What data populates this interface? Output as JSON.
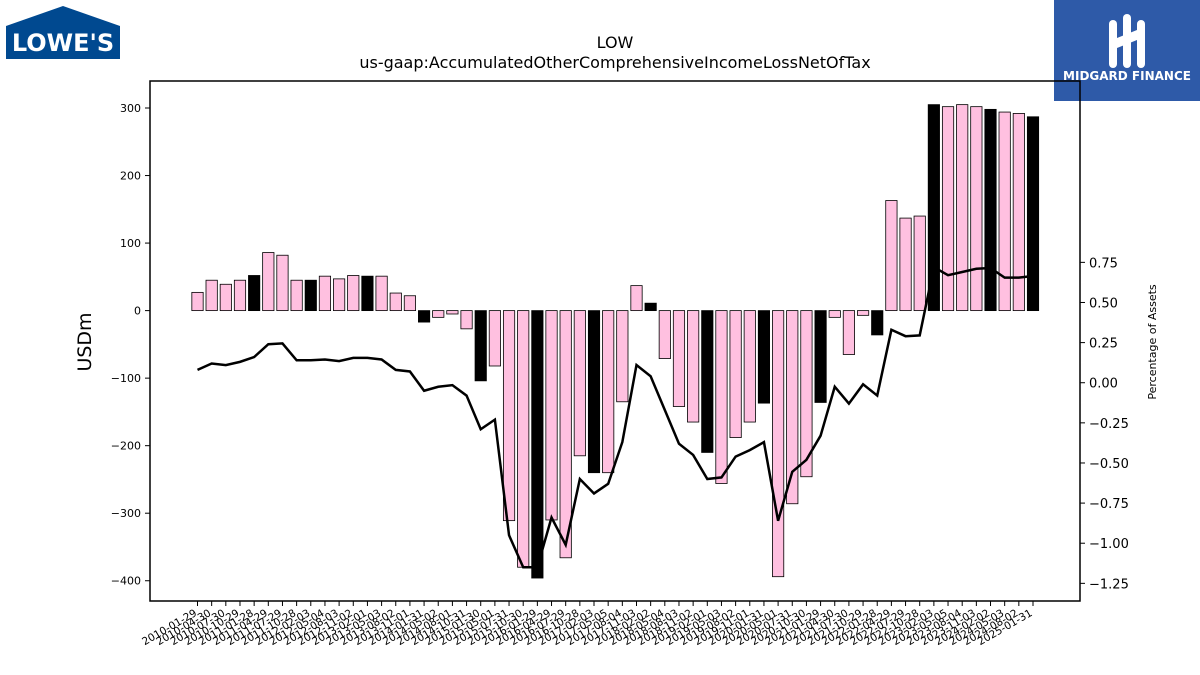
{
  "brand": {
    "left_logo_text": "LOWE'S",
    "right_logo_text": "MIDGARD FINANCE",
    "lowes_blue": "#004990",
    "midgard_blue": "#2e5aa8"
  },
  "chart_data": {
    "type": "bar",
    "title": "LOW",
    "subtitle": "us-gaap:AccumulatedOtherComprehensiveIncomeLossNetOfTax",
    "ylabel": "USDm",
    "y2label": "Percentage of Assets",
    "ylim": [
      -430,
      340
    ],
    "y2lim": [
      -1.36,
      1.88
    ],
    "yticks": [
      300,
      200,
      100,
      0,
      -100,
      -200,
      -300,
      -400
    ],
    "y2ticks": [
      0.75,
      0.5,
      0.25,
      0.0,
      -0.25,
      -0.5,
      -0.75,
      -1.0,
      -1.25
    ],
    "y2tick_labels": [
      "0.75",
      "0.50",
      "0.25",
      "0.00",
      "−0.25",
      "−0.50",
      "−0.75",
      "−1.00",
      "−1.25"
    ],
    "ytick_labels": [
      "300",
      "200",
      "100",
      "0",
      "−100",
      "−200",
      "−300",
      "−400"
    ],
    "xtick_labels": [
      "2010-01-29",
      "2010-04-30",
      "2010-07-30",
      "2010-10-29",
      "2011-01-28",
      "2011-04-29",
      "2011-07-29",
      "2011-10-28",
      "2012-02-03",
      "2012-05-04",
      "2012-08-03",
      "2012-11-02",
      "2013-02-01",
      "2013-05-03",
      "2013-08-02",
      "2013-11-01",
      "2014-01-31",
      "2014-05-02",
      "2014-08-01",
      "2014-10-31",
      "2015-01-30",
      "2015-05-01",
      "2015-07-31",
      "2015-10-30",
      "2016-01-29",
      "2016-04-29",
      "2016-07-29",
      "2016-10-28",
      "2017-02-03",
      "2017-05-05",
      "2017-08-04",
      "2017-11-03",
      "2018-02-02",
      "2018-05-04",
      "2018-08-03",
      "2018-11-02",
      "2019-02-01",
      "2019-05-03",
      "2019-08-02",
      "2019-11-01",
      "2020-01-31",
      "2020-05-01",
      "2020-07-31",
      "2020-10-30",
      "2021-01-29",
      "2021-04-30",
      "2021-07-30",
      "2021-10-29",
      "2022-01-28",
      "2022-04-29",
      "2022-07-29",
      "2022-10-28",
      "2023-02-03",
      "2023-05-05",
      "2023-08-04",
      "2023-11-03",
      "2024-02-02",
      "2024-05-03",
      "2024-08-02",
      "2025-01-31"
    ],
    "fiscal_year_end": [
      false,
      false,
      false,
      false,
      true,
      false,
      false,
      false,
      true,
      false,
      false,
      false,
      true,
      false,
      false,
      false,
      true,
      false,
      false,
      false,
      true,
      false,
      false,
      false,
      true,
      false,
      false,
      false,
      true,
      false,
      false,
      false,
      true,
      false,
      false,
      false,
      true,
      false,
      false,
      false,
      true,
      false,
      false,
      false,
      true,
      false,
      false,
      false,
      true,
      false,
      false,
      false,
      true,
      false,
      false,
      false,
      true,
      false,
      false,
      true
    ],
    "series": [
      {
        "name": "AccumulatedOtherComprehensiveIncomeLossNetOfTax",
        "values": [
          27,
          45,
          39,
          45,
          52,
          86,
          82,
          45,
          45,
          51,
          47,
          52,
          51,
          51,
          26,
          22,
          -17,
          -10,
          -5,
          -27,
          -104,
          -82,
          -311,
          -380,
          -396,
          -310,
          -366,
          -215,
          -240,
          -240,
          -135,
          37,
          11,
          -71,
          -142,
          -165,
          -210,
          -256,
          -188,
          -165,
          -137,
          -394,
          -286,
          -246,
          -136,
          -10,
          -65,
          -7,
          -36,
          163,
          137,
          140,
          305,
          302,
          305,
          302,
          298,
          294,
          292,
          287
        ],
        "fill": "#ffc0e0",
        "fiscal_fill": "#000000"
      },
      {
        "name": "Percentage of Assets",
        "values": [
          0.08,
          0.12,
          0.11,
          0.13,
          0.16,
          0.24,
          0.245,
          0.14,
          0.14,
          0.145,
          0.135,
          0.155,
          0.155,
          0.145,
          0.08,
          0.07,
          -0.05,
          -0.025,
          -0.015,
          -0.08,
          -0.29,
          -0.23,
          -0.95,
          -1.15,
          -1.15,
          -0.84,
          -1.01,
          -0.6,
          -0.69,
          -0.63,
          -0.37,
          0.11,
          0.04,
          -0.17,
          -0.38,
          -0.45,
          -0.6,
          -0.59,
          -0.46,
          -0.42,
          -0.37,
          -0.86,
          -0.555,
          -0.48,
          -0.33,
          -0.025,
          -0.13,
          -0.01,
          -0.08,
          0.33,
          0.29,
          0.295,
          0.72,
          0.67,
          0.69,
          0.71,
          0.715,
          0.655,
          0.655,
          0.665
        ],
        "color": "#000000"
      }
    ]
  }
}
